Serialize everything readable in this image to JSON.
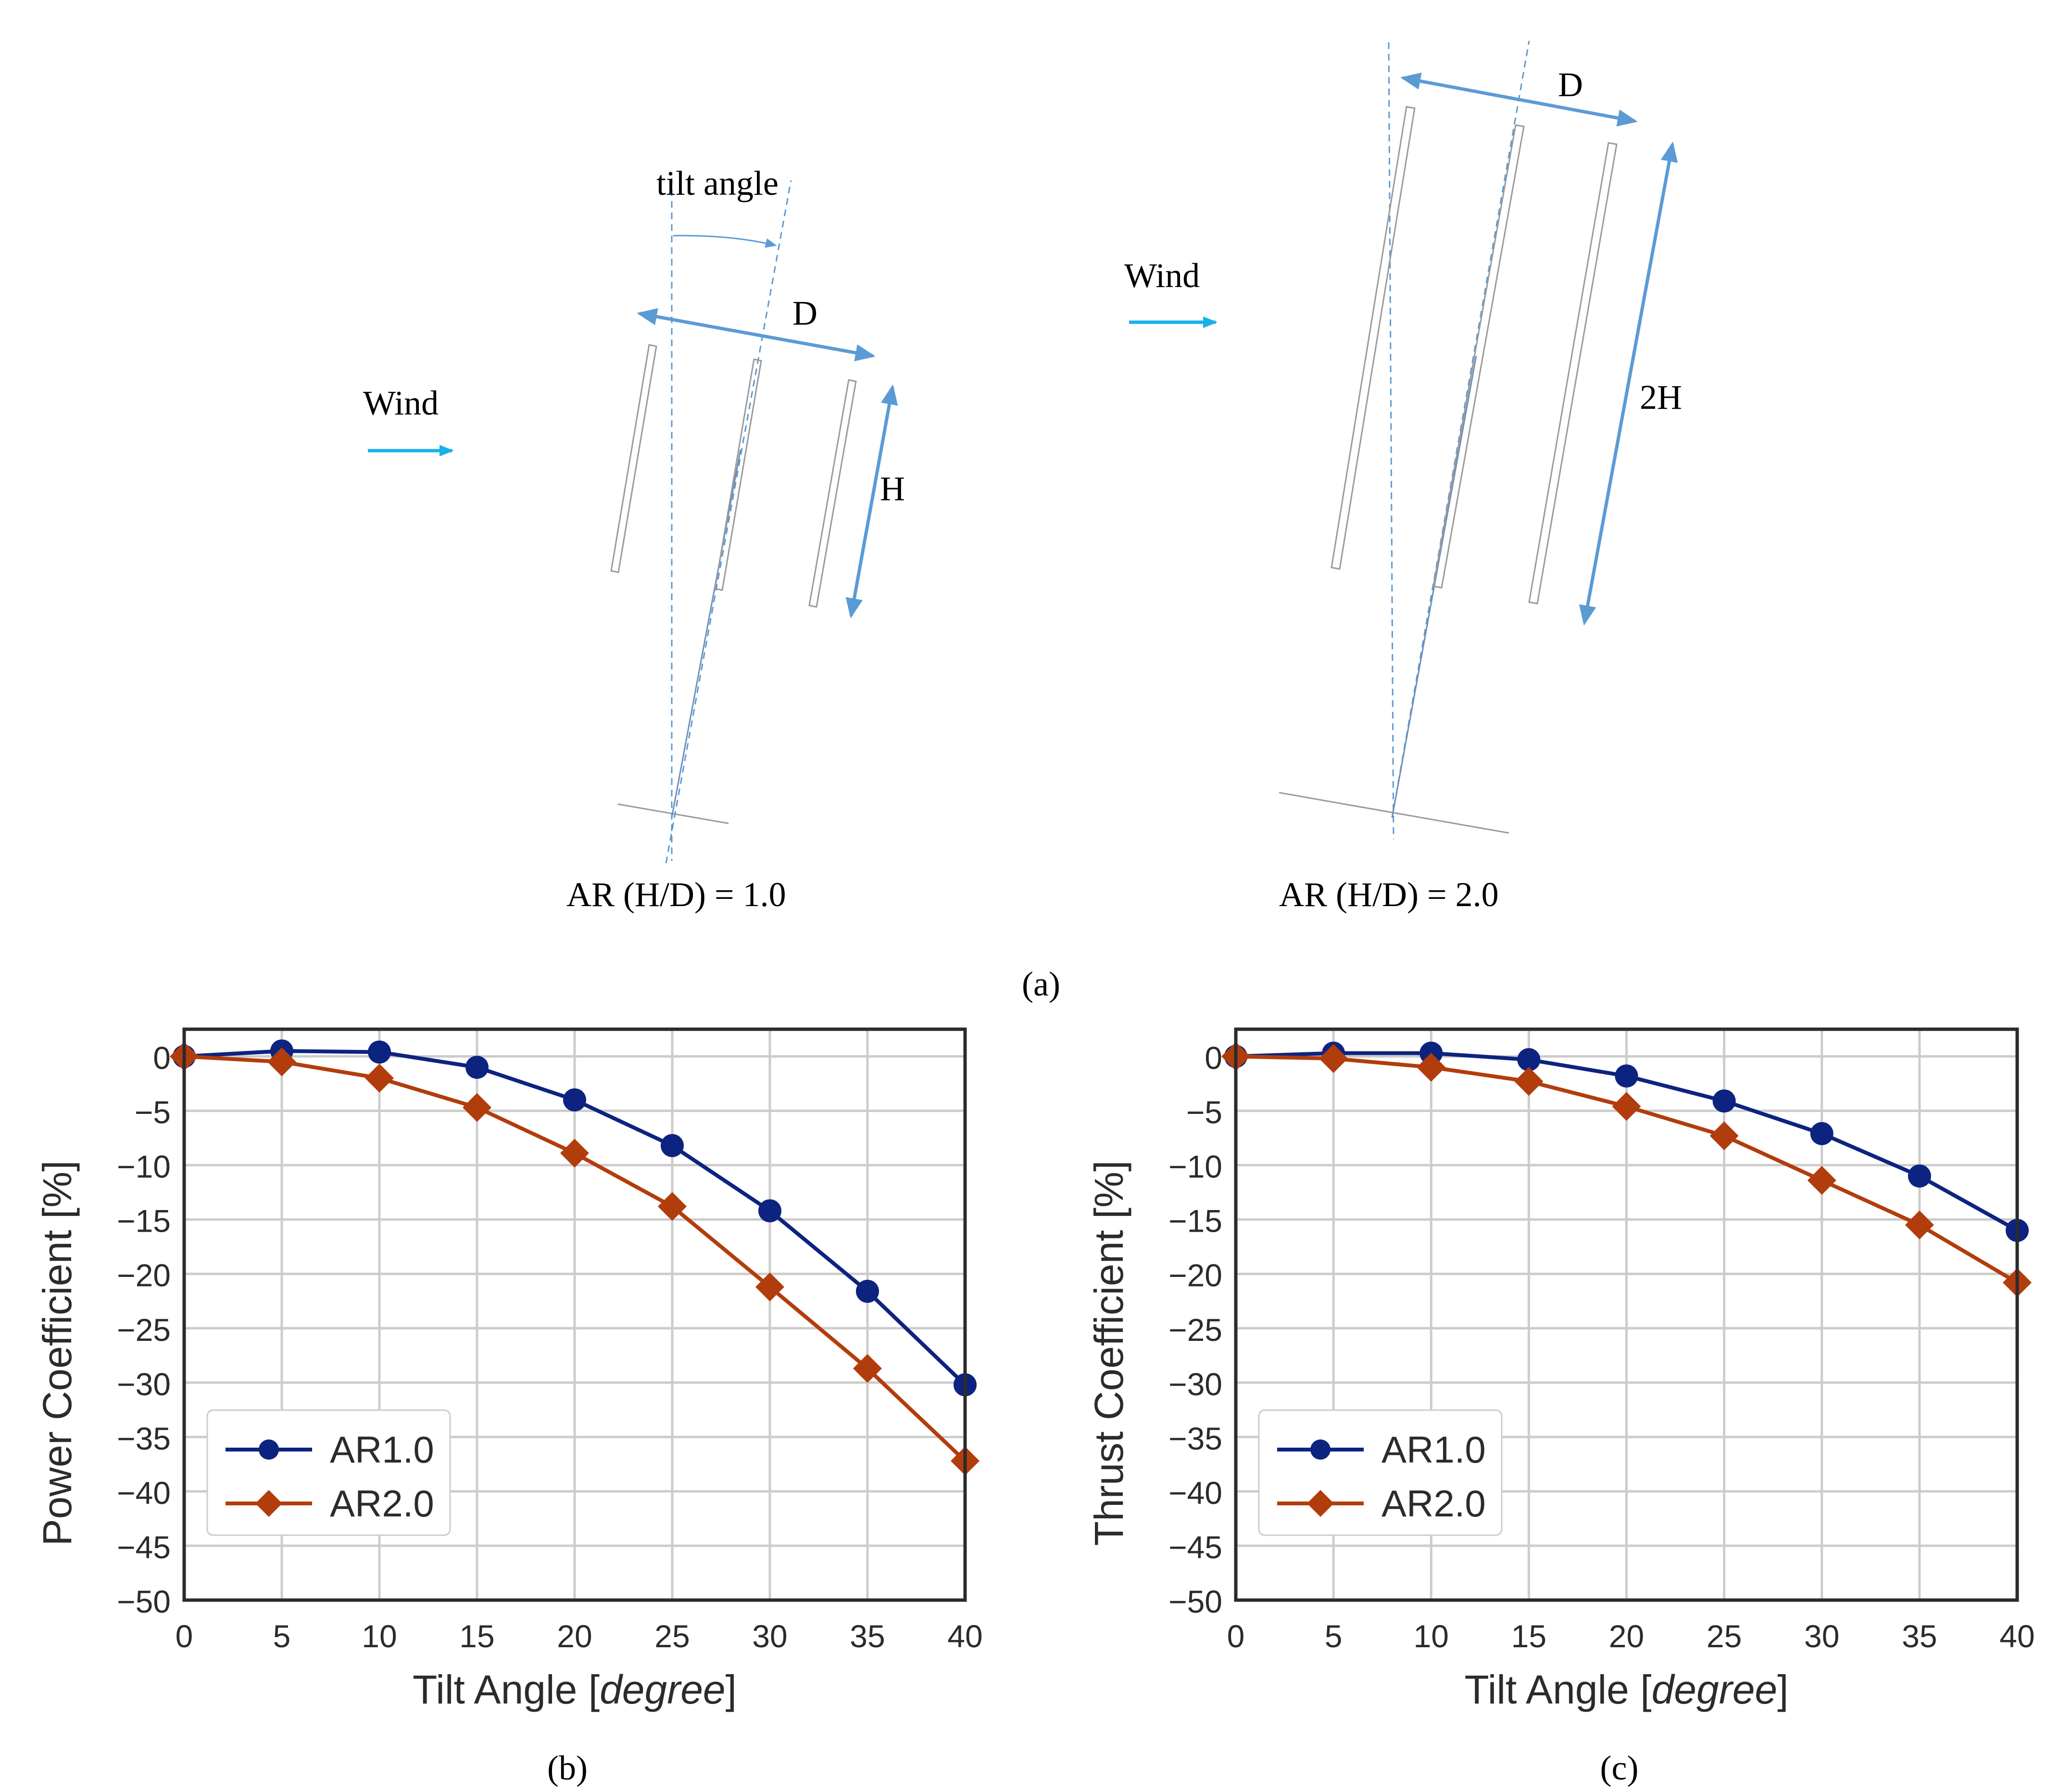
{
  "panel_a": {
    "label": "(a)",
    "left_diagram": {
      "wind_label": "Wind",
      "tilt_label": "tilt angle",
      "spacing_label": "D",
      "height_label": "H",
      "caption": "AR (H/D) = 1.0"
    },
    "right_diagram": {
      "wind_label": "Wind",
      "spacing_label": "D",
      "height_label": "2H",
      "caption": "AR (H/D) = 2.0"
    }
  },
  "colors": {
    "ar1": "#0d2380",
    "ar2": "#b23d0c",
    "arrow_blue": "#5b9bd5",
    "wind_cyan": "#19b1ea",
    "grid": "#cccccc",
    "axes": "#2b2b2b"
  },
  "chart_data": [
    {
      "panel_label": "(b)",
      "type": "line",
      "title": "",
      "xlabel_prefix": "Tilt Angle [",
      "xlabel_italic": "degree",
      "xlabel_suffix": "]",
      "ylabel": "Power Coefficient [%]",
      "x": [
        0,
        5,
        10,
        15,
        20,
        25,
        30,
        35,
        40
      ],
      "xlim": [
        0,
        40
      ],
      "ylim": [
        -50,
        2.5
      ],
      "xticks": [
        "0",
        "5",
        "10",
        "15",
        "20",
        "25",
        "30",
        "35",
        "40"
      ],
      "yticks": [
        "0",
        "−5",
        "−10",
        "−15",
        "−20",
        "−25",
        "−30",
        "−35",
        "−40",
        "−45",
        "−50"
      ],
      "ytick_values": [
        0,
        -5,
        -10,
        -15,
        -20,
        -25,
        -30,
        -35,
        -40,
        -45,
        -50
      ],
      "grid": true,
      "legend_position": "lower-left",
      "series": [
        {
          "name": "AR1.0",
          "marker": "circle",
          "values": [
            0,
            0.5,
            0.4,
            -1.0,
            -4.0,
            -8.2,
            -14.2,
            -21.6,
            -30.2
          ]
        },
        {
          "name": "AR2.0",
          "marker": "diamond",
          "values": [
            0,
            -0.5,
            -2.0,
            -4.7,
            -8.9,
            -13.8,
            -21.2,
            -28.7,
            -37.2
          ]
        }
      ]
    },
    {
      "panel_label": "(c)",
      "type": "line",
      "title": "",
      "xlabel_prefix": "Tilt Angle [",
      "xlabel_italic": "degree",
      "xlabel_suffix": "]",
      "ylabel": "Thrust Coefficient [%]",
      "x": [
        0,
        5,
        10,
        15,
        20,
        25,
        30,
        35,
        40
      ],
      "xlim": [
        0,
        40
      ],
      "ylim": [
        -50,
        2.5
      ],
      "xticks": [
        "0",
        "5",
        "10",
        "15",
        "20",
        "25",
        "30",
        "35",
        "40"
      ],
      "yticks": [
        "0",
        "−5",
        "−10",
        "−15",
        "−20",
        "−25",
        "−30",
        "−35",
        "−40",
        "−45",
        "−50"
      ],
      "ytick_values": [
        0,
        -5,
        -10,
        -15,
        -20,
        -25,
        -30,
        -35,
        -40,
        -45,
        -50
      ],
      "grid": true,
      "legend_position": "lower-left",
      "series": [
        {
          "name": "AR1.0",
          "marker": "circle",
          "values": [
            0,
            0.3,
            0.3,
            -0.3,
            -1.8,
            -4.1,
            -7.1,
            -11.0,
            -16.0
          ]
        },
        {
          "name": "AR2.0",
          "marker": "diamond",
          "values": [
            0,
            -0.2,
            -1.0,
            -2.3,
            -4.6,
            -7.3,
            -11.4,
            -15.5,
            -20.8
          ]
        }
      ]
    }
  ]
}
